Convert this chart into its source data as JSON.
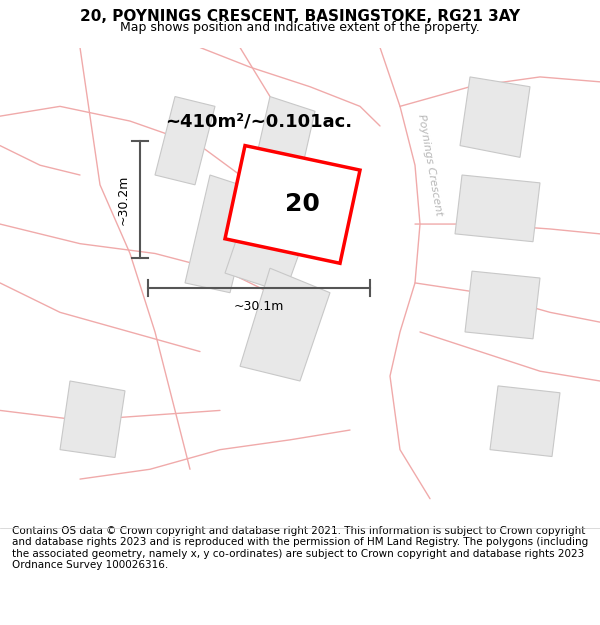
{
  "title": "20, POYNINGS CRESCENT, BASINGSTOKE, RG21 3AY",
  "subtitle": "Map shows position and indicative extent of the property.",
  "area_label": "~410m²/~0.101ac.",
  "number_label": "20",
  "width_label": "~30.1m",
  "height_label": "~30.2m",
  "footer": "Contains OS data © Crown copyright and database right 2021. This information is subject to Crown copyright and database rights 2023 and is reproduced with the permission of HM Land Registry. The polygons (including the associated geometry, namely x, y co-ordinates) are subject to Crown copyright and database rights 2023 Ordnance Survey 100026316.",
  "background_color": "#ffffff",
  "map_background": "#ffffff",
  "building_fill": "#e8e8e8",
  "building_edge": "#c8c8c8",
  "road_color": "#f0aaaa",
  "highlight_color": "#ff0000",
  "dim_line_color": "#555555",
  "road_label_color": "#b8b8b8",
  "title_fontsize": 11,
  "subtitle_fontsize": 9,
  "footer_fontsize": 7.5,
  "area_fontsize": 13,
  "number_fontsize": 18,
  "dim_fontsize": 9,
  "road_label_fontsize": 8
}
